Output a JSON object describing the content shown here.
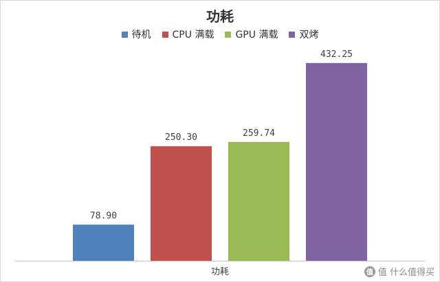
{
  "chart_data": {
    "type": "bar",
    "title": "功耗",
    "categories": [
      "功耗"
    ],
    "series": [
      {
        "name": "待机",
        "values": [
          78.9
        ],
        "label": "78.90",
        "color": "#4f81bd"
      },
      {
        "name": "CPU 满载",
        "values": [
          250.3
        ],
        "label": "250.30",
        "color": "#c0504d"
      },
      {
        "name": "GPU 满载",
        "values": [
          259.74
        ],
        "label": "259.74",
        "color": "#9bbb59"
      },
      {
        "name": "双烤",
        "values": [
          432.25
        ],
        "label": "432.25",
        "color": "#8064a2"
      }
    ],
    "xlabel": "",
    "ylabel": "",
    "ylim": [
      0,
      450
    ],
    "grid": false,
    "legend": "top"
  },
  "watermark": {
    "text": "值 什么值得买",
    "logo": "值"
  }
}
